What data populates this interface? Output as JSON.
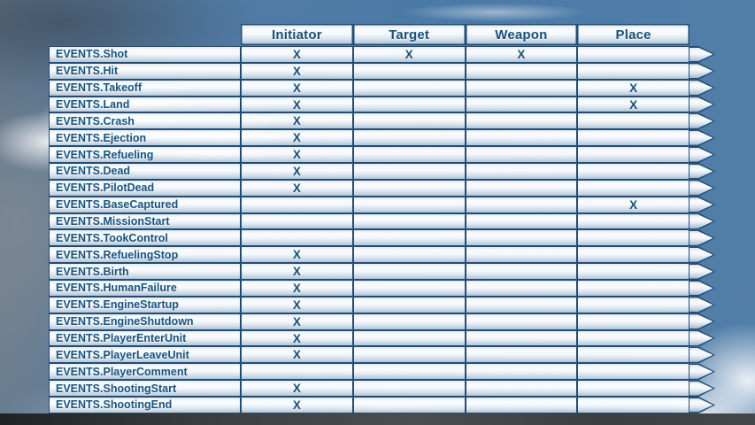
{
  "table": {
    "columns": [
      "Initiator",
      "Target",
      "Weapon",
      "Place"
    ],
    "mark_glyph": "X",
    "rows": [
      {
        "label": "EVENTS.Shot",
        "marks": [
          "X",
          "X",
          "X",
          ""
        ]
      },
      {
        "label": "EVENTS.Hit",
        "marks": [
          "X",
          "",
          "",
          ""
        ]
      },
      {
        "label": "EVENTS.Takeoff",
        "marks": [
          "X",
          "",
          "",
          "X"
        ]
      },
      {
        "label": "EVENTS.Land",
        "marks": [
          "X",
          "",
          "",
          "X"
        ]
      },
      {
        "label": "EVENTS.Crash",
        "marks": [
          "X",
          "",
          "",
          ""
        ]
      },
      {
        "label": "EVENTS.Ejection",
        "marks": [
          "X",
          "",
          "",
          ""
        ]
      },
      {
        "label": "EVENTS.Refueling",
        "marks": [
          "X",
          "",
          "",
          ""
        ]
      },
      {
        "label": "EVENTS.Dead",
        "marks": [
          "X",
          "",
          "",
          ""
        ]
      },
      {
        "label": "EVENTS.PilotDead",
        "marks": [
          "X",
          "",
          "",
          ""
        ]
      },
      {
        "label": "EVENTS.BaseCaptured",
        "marks": [
          "",
          "",
          "",
          "X"
        ]
      },
      {
        "label": "EVENTS.MissionStart",
        "marks": [
          "",
          "",
          "",
          ""
        ]
      },
      {
        "label": "EVENTS.TookControl",
        "marks": [
          "",
          "",
          "",
          ""
        ]
      },
      {
        "label": "EVENTS.RefuelingStop",
        "marks": [
          "X",
          "",
          "",
          ""
        ]
      },
      {
        "label": "EVENTS.Birth",
        "marks": [
          "X",
          "",
          "",
          ""
        ]
      },
      {
        "label": "EVENTS.HumanFailure",
        "marks": [
          "X",
          "",
          "",
          ""
        ]
      },
      {
        "label": "EVENTS.EngineStartup",
        "marks": [
          "X",
          "",
          "",
          ""
        ]
      },
      {
        "label": "EVENTS.EngineShutdown",
        "marks": [
          "X",
          "",
          "",
          ""
        ]
      },
      {
        "label": "EVENTS.PlayerEnterUnit",
        "marks": [
          "X",
          "",
          "",
          ""
        ]
      },
      {
        "label": "EVENTS.PlayerLeaveUnit",
        "marks": [
          "X",
          "",
          "",
          ""
        ]
      },
      {
        "label": "EVENTS.PlayerComment",
        "marks": [
          "",
          "",
          "",
          ""
        ]
      },
      {
        "label": "EVENTS.ShootingStart",
        "marks": [
          "X",
          "",
          "",
          ""
        ]
      },
      {
        "label": "EVENTS.ShootingEnd",
        "marks": [
          "X",
          "",
          "",
          ""
        ]
      }
    ]
  },
  "colors": {
    "table_text": "#15527e",
    "table_border": "#1e4e78",
    "sky_blue": "#4c7ca8",
    "ground_dark": "#33373a"
  }
}
